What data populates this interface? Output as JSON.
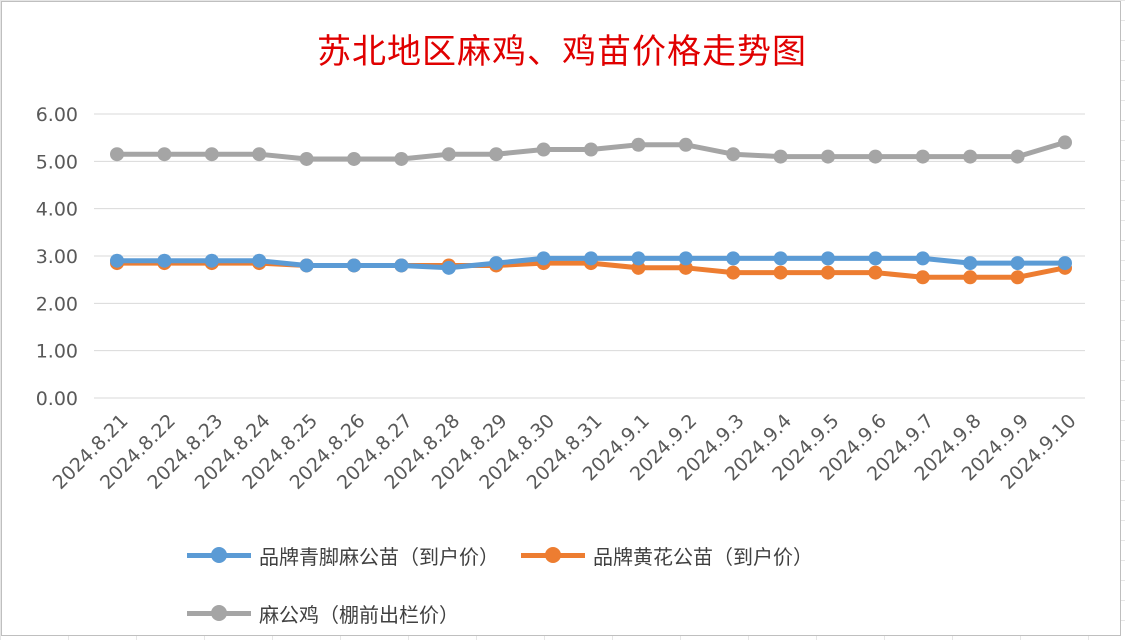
{
  "chart_data": {
    "type": "line",
    "title": "苏北地区麻鸡、鸡苗价格走势图",
    "xlabel": "",
    "ylabel": "",
    "ylim": [
      0,
      6
    ],
    "yticks": [
      "0.00",
      "1.00",
      "2.00",
      "3.00",
      "4.00",
      "5.00",
      "6.00"
    ],
    "grid": true,
    "legend_position": "bottom",
    "categories": [
      "2024.8.21",
      "2024.8.22",
      "2024.8.23",
      "2024.8.24",
      "2024.8.25",
      "2024.8.26",
      "2024.8.27",
      "2024.8.28",
      "2024.8.29",
      "2024.8.30",
      "2024.8.31",
      "2024.9.1",
      "2024.9.2",
      "2024.9.3",
      "2024.9.4",
      "2024.9.5",
      "2024.9.6",
      "2024.9.7",
      "2024.9.8",
      "2024.9.9",
      "2024.9.10"
    ],
    "series": [
      {
        "name": "品牌青脚麻公苗（到户价）",
        "color": "#5b9bd5",
        "values": [
          2.9,
          2.9,
          2.9,
          2.9,
          2.8,
          2.8,
          2.8,
          2.75,
          2.85,
          2.95,
          2.95,
          2.95,
          2.95,
          2.95,
          2.95,
          2.95,
          2.95,
          2.95,
          2.85,
          2.85,
          2.85
        ]
      },
      {
        "name": "品牌黄花公苗（到户价）",
        "color": "#ed7d31",
        "values": [
          2.85,
          2.85,
          2.85,
          2.85,
          2.8,
          2.8,
          2.8,
          2.8,
          2.8,
          2.85,
          2.85,
          2.75,
          2.75,
          2.65,
          2.65,
          2.65,
          2.65,
          2.55,
          2.55,
          2.55,
          2.75
        ]
      },
      {
        "name": "麻公鸡（棚前出栏价）",
        "color": "#a5a5a5",
        "values": [
          5.15,
          5.15,
          5.15,
          5.15,
          5.05,
          5.05,
          5.05,
          5.15,
          5.15,
          5.25,
          5.25,
          5.35,
          5.35,
          5.15,
          5.1,
          5.1,
          5.1,
          5.1,
          5.1,
          5.1,
          5.4
        ]
      }
    ]
  }
}
